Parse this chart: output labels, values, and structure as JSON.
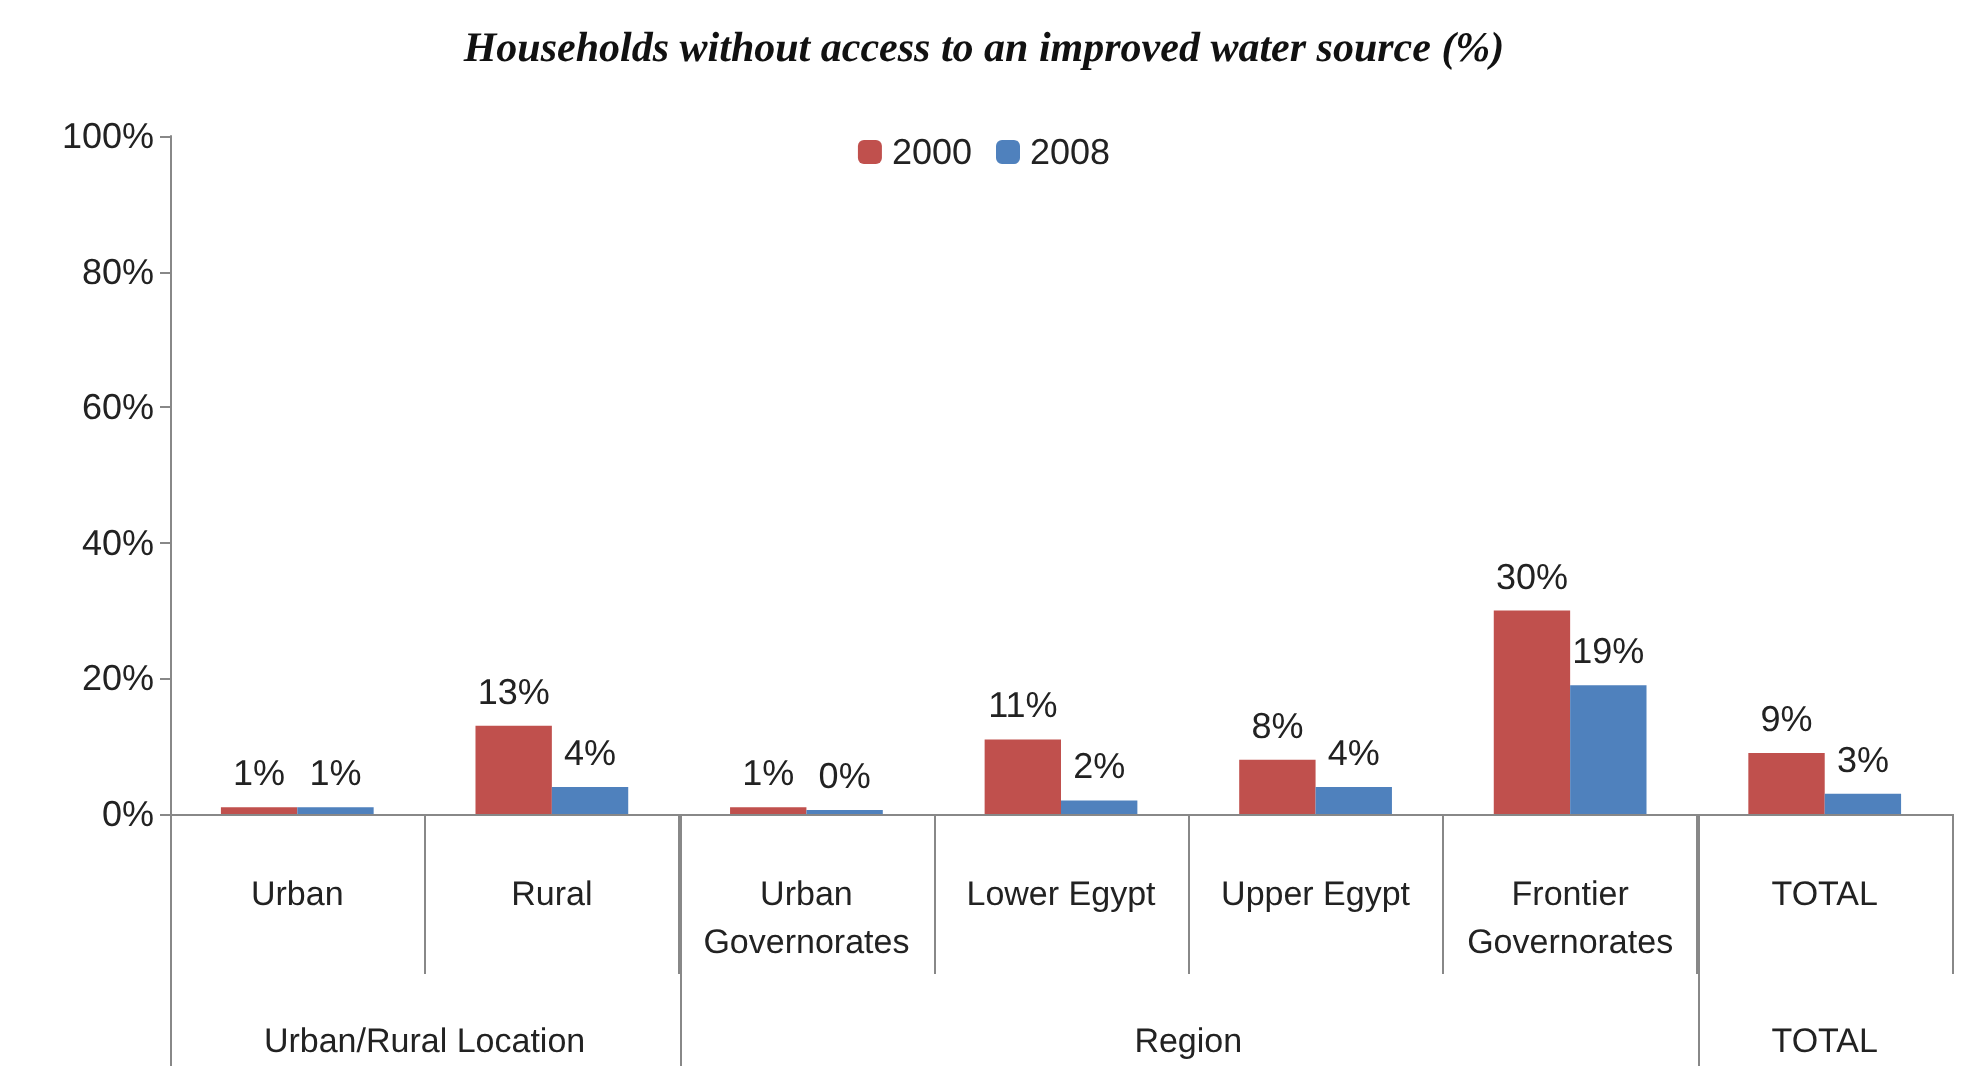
{
  "chart_data": {
    "type": "bar",
    "title": "Households without access to an improved water source (%)",
    "categories": [
      "Urban",
      "Rural",
      "Urban\nGovernorates",
      "Lower Egypt",
      "Upper Egypt",
      "Frontier\nGovernorates",
      "TOTAL"
    ],
    "series": [
      {
        "name": "2000",
        "color": "#c0504d",
        "values": [
          1,
          13,
          1,
          11,
          8,
          30,
          9
        ],
        "value_labels": [
          "1%",
          "13%",
          "1%",
          "11%",
          "8%",
          "30%",
          "9%"
        ]
      },
      {
        "name": "2008",
        "color": "#4f81bd",
        "values": [
          1,
          4,
          0,
          2,
          4,
          19,
          3
        ],
        "value_labels": [
          "1%",
          "4%",
          "0%",
          "2%",
          "4%",
          "19%",
          "3%"
        ]
      }
    ],
    "ylim": [
      0,
      100
    ],
    "yticks": [
      {
        "value": 0,
        "label": "0%"
      },
      {
        "value": 20,
        "label": "20%"
      },
      {
        "value": 40,
        "label": "40%"
      },
      {
        "value": 60,
        "label": "60%"
      },
      {
        "value": 80,
        "label": "80%"
      },
      {
        "value": 100,
        "label": "100%"
      }
    ],
    "annotations": [
      "Urban/Rural Location",
      "Region",
      "TOTAL"
    ],
    "grid": false,
    "legend": "top"
  }
}
